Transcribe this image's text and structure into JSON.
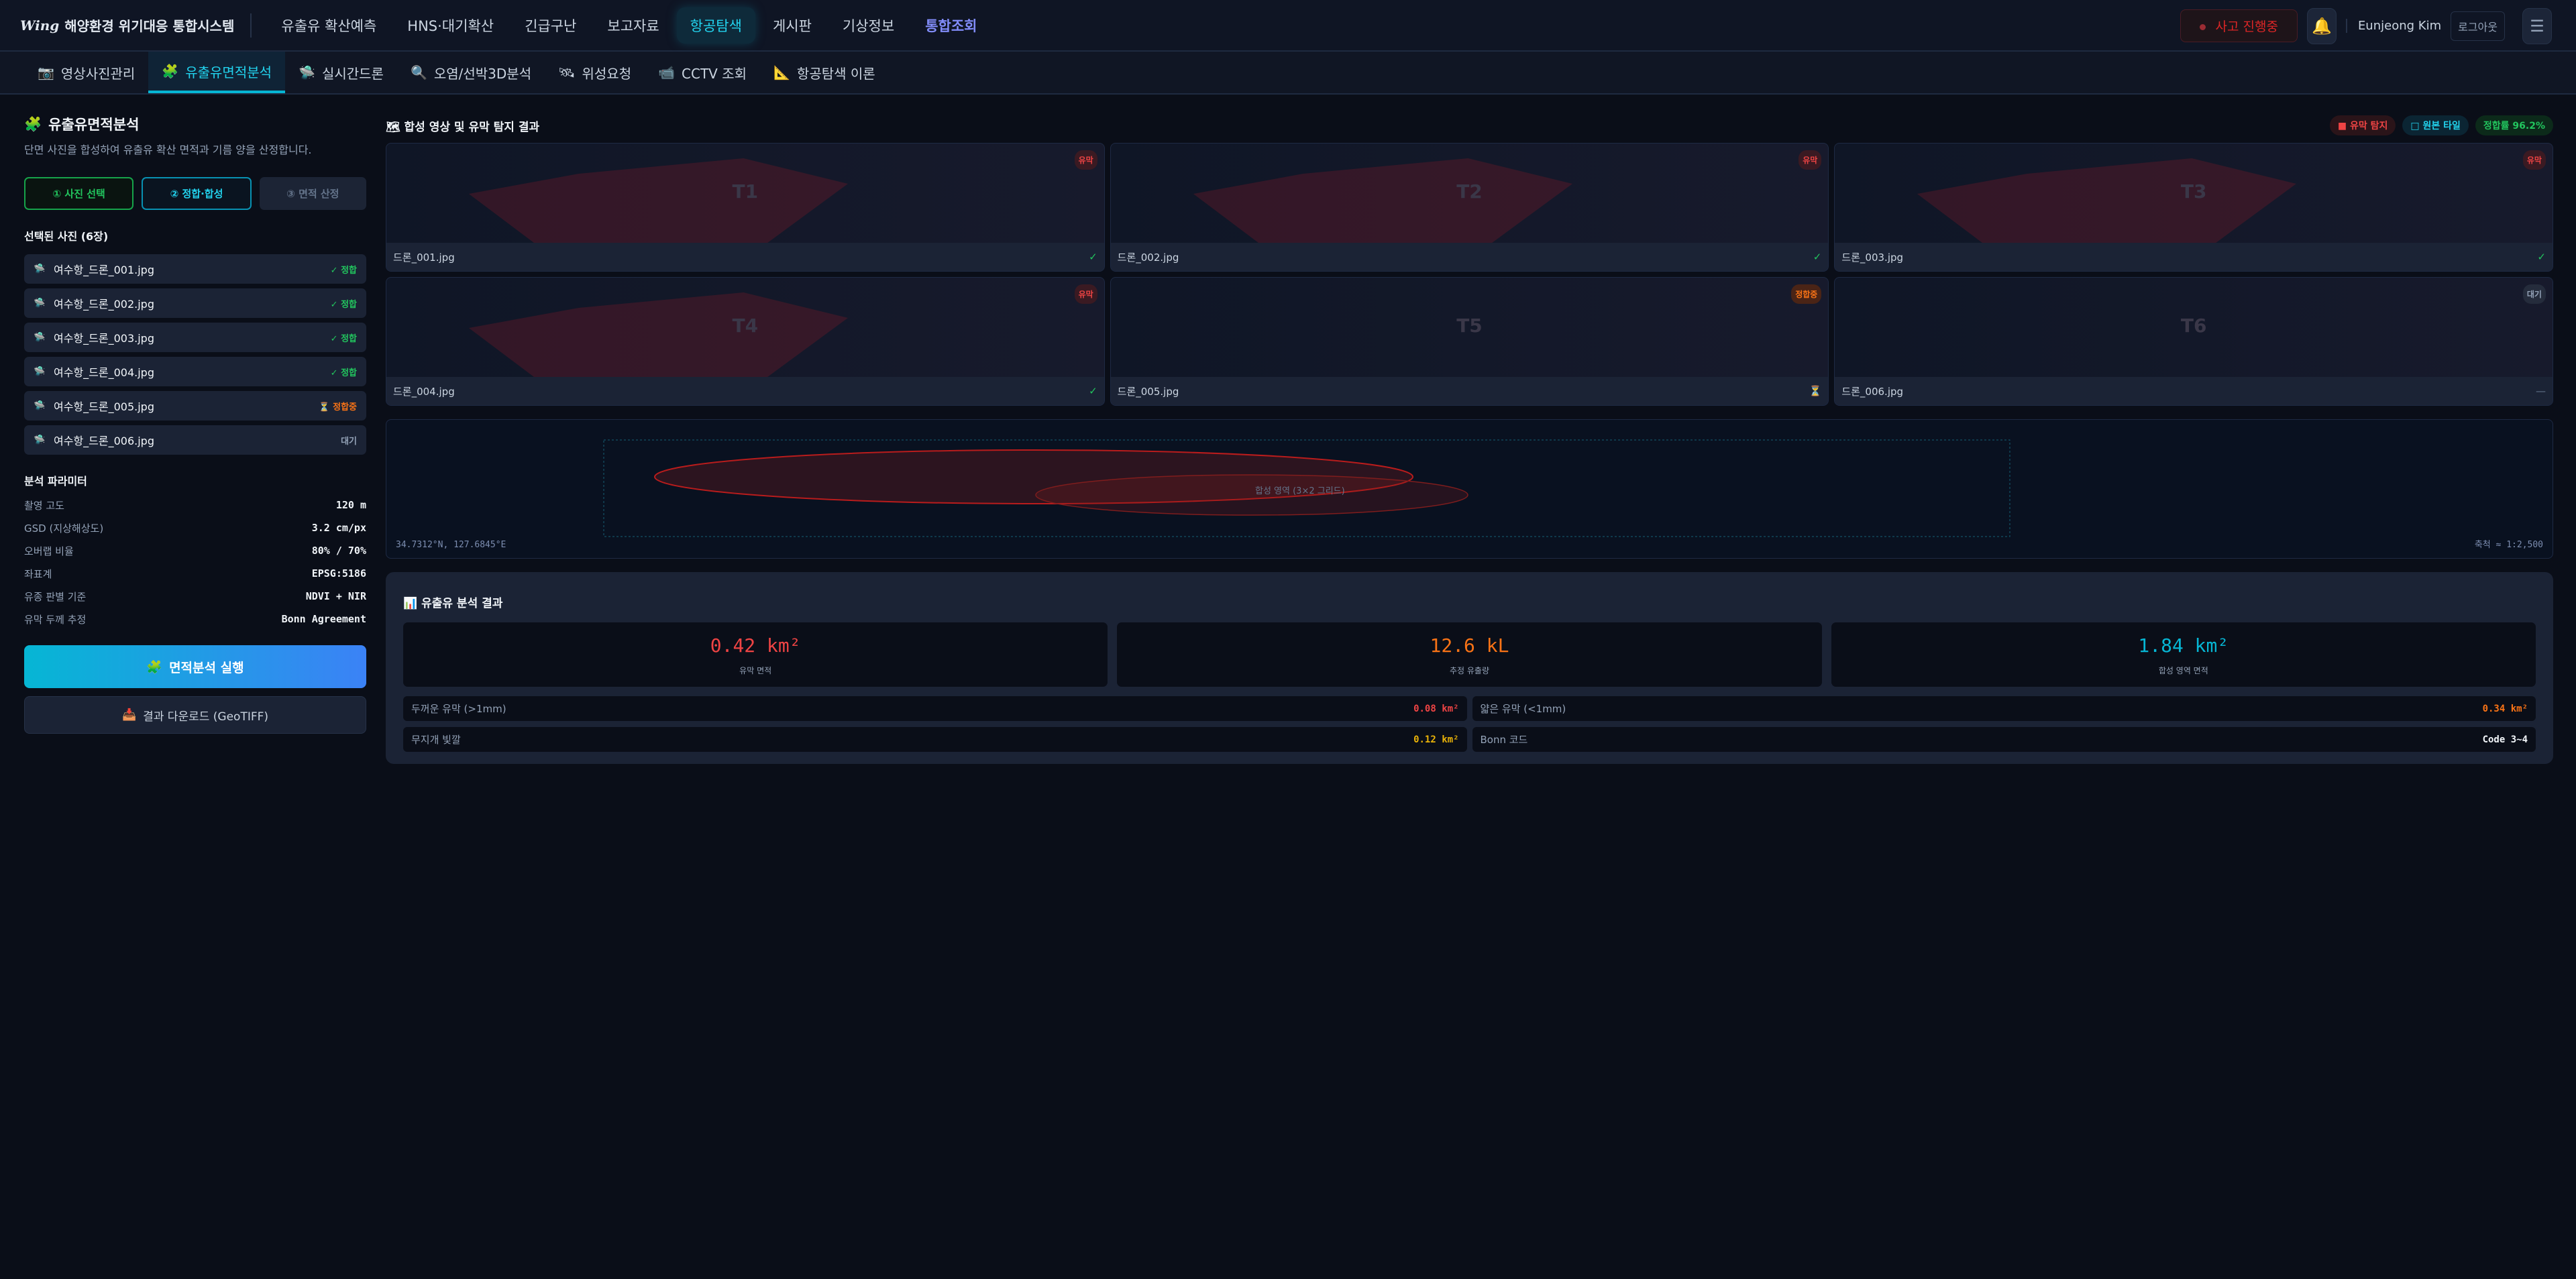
{
  "header": {
    "logo_mark": "Wing",
    "app_title": "해양환경 위기대응 통합시스템",
    "nav": [
      "유출유 확산예측",
      "HNS·대기확산",
      "긴급구난",
      "보고자료",
      "항공탐색",
      "게시판",
      "기상정보",
      "통합조회"
    ],
    "incident_label": "사고 진행중",
    "user_name": "Eunjeong Kim",
    "logout_label": "로그아웃"
  },
  "subnav": [
    {
      "icon": "📷",
      "label": "영상사진관리"
    },
    {
      "icon": "🧩",
      "label": "유출유면적분석"
    },
    {
      "icon": "🛸",
      "label": "실시간드론"
    },
    {
      "icon": "🔍",
      "label": "오염/선박3D분석"
    },
    {
      "icon": "🛰",
      "label": "위성요청"
    },
    {
      "icon": "📹",
      "label": "CCTV 조회"
    },
    {
      "icon": "📐",
      "label": "항공탐색 이론"
    }
  ],
  "sidebar": {
    "title": "유출유면적분석",
    "desc": "단면 사진을 합성하여 유출유 확산 면적과 기름 양을 산정합니다.",
    "steps": [
      "① 사진 선택",
      "② 정합·합성",
      "③ 면적 산정"
    ],
    "selected_title": "선택된 사진 (6장)",
    "files": [
      {
        "name": "여수항_드론_001.jpg",
        "status": "✓ 정합"
      },
      {
        "name": "여수항_드론_002.jpg",
        "status": "✓ 정합"
      },
      {
        "name": "여수항_드론_003.jpg",
        "status": "✓ 정합"
      },
      {
        "name": "여수항_드론_004.jpg",
        "status": "✓ 정합"
      },
      {
        "name": "여수항_드론_005.jpg",
        "status": "⏳ 정합중"
      },
      {
        "name": "여수항_드론_006.jpg",
        "status": "대기"
      }
    ],
    "params_title": "분석 파라미터",
    "params": [
      {
        "k": "촬영 고도",
        "v": "120 m"
      },
      {
        "k": "GSD (지상해상도)",
        "v": "3.2 cm/px"
      },
      {
        "k": "오버랩 비율",
        "v": "80% / 70%"
      },
      {
        "k": "좌표계",
        "v": "EPSG:5186"
      },
      {
        "k": "유종 판별 기준",
        "v": "NDVI + NIR"
      },
      {
        "k": "유막 두께 추정",
        "v": "Bonn Agreement"
      }
    ],
    "run_label": "면적분석 실행",
    "download_label": "결과 다운로드 (GeoTIFF)"
  },
  "main": {
    "title": "합성 영상 및 유막 탐지 결과",
    "legend": [
      "■ 유막 탐지",
      "□ 원본 타일",
      "정합률 96.2%"
    ],
    "tiles": [
      {
        "label": "T1",
        "badge": "유막",
        "file": "드론_001.jpg",
        "mark": "✓"
      },
      {
        "label": "T2",
        "badge": "유막",
        "file": "드론_002.jpg",
        "mark": "✓"
      },
      {
        "label": "T3",
        "badge": "유막",
        "file": "드론_003.jpg",
        "mark": "✓"
      },
      {
        "label": "T4",
        "badge": "유막",
        "file": "드론_004.jpg",
        "mark": "✓"
      },
      {
        "label": "T5",
        "badge": "정합중",
        "file": "드론_005.jpg",
        "mark": "⏳"
      },
      {
        "label": "T6",
        "badge": "대기",
        "file": "드론_006.jpg",
        "mark": "—"
      }
    ],
    "map": {
      "area_label": "합성 영역 (3×2 그리드)",
      "coord": "34.7312°N, 127.6845°E",
      "scale": "축척 ≈ 1:2,500"
    },
    "results": {
      "title": "유출유 분석 결과",
      "cards": [
        {
          "value": "0.42 km²",
          "label": "유막 면적",
          "color": "#ef4444"
        },
        {
          "value": "12.6 kL",
          "label": "추정 유출량",
          "color": "#f97316"
        },
        {
          "value": "1.84 km²",
          "label": "합성 영역 면적",
          "color": "#06b6d4"
        }
      ],
      "rows": [
        {
          "k": "두꺼운 유막 (>1mm)",
          "v": "0.08 km²",
          "color": "#ef4444"
        },
        {
          "k": "얇은 유막 (<1mm)",
          "v": "0.34 km²",
          "color": "#f97316"
        },
        {
          "k": "무지개 빛깔",
          "v": "0.12 km²",
          "color": "#eab308"
        },
        {
          "k": "Bonn 코드",
          "v": "Code 3~4",
          "color": "#f1f5f9"
        }
      ]
    }
  }
}
